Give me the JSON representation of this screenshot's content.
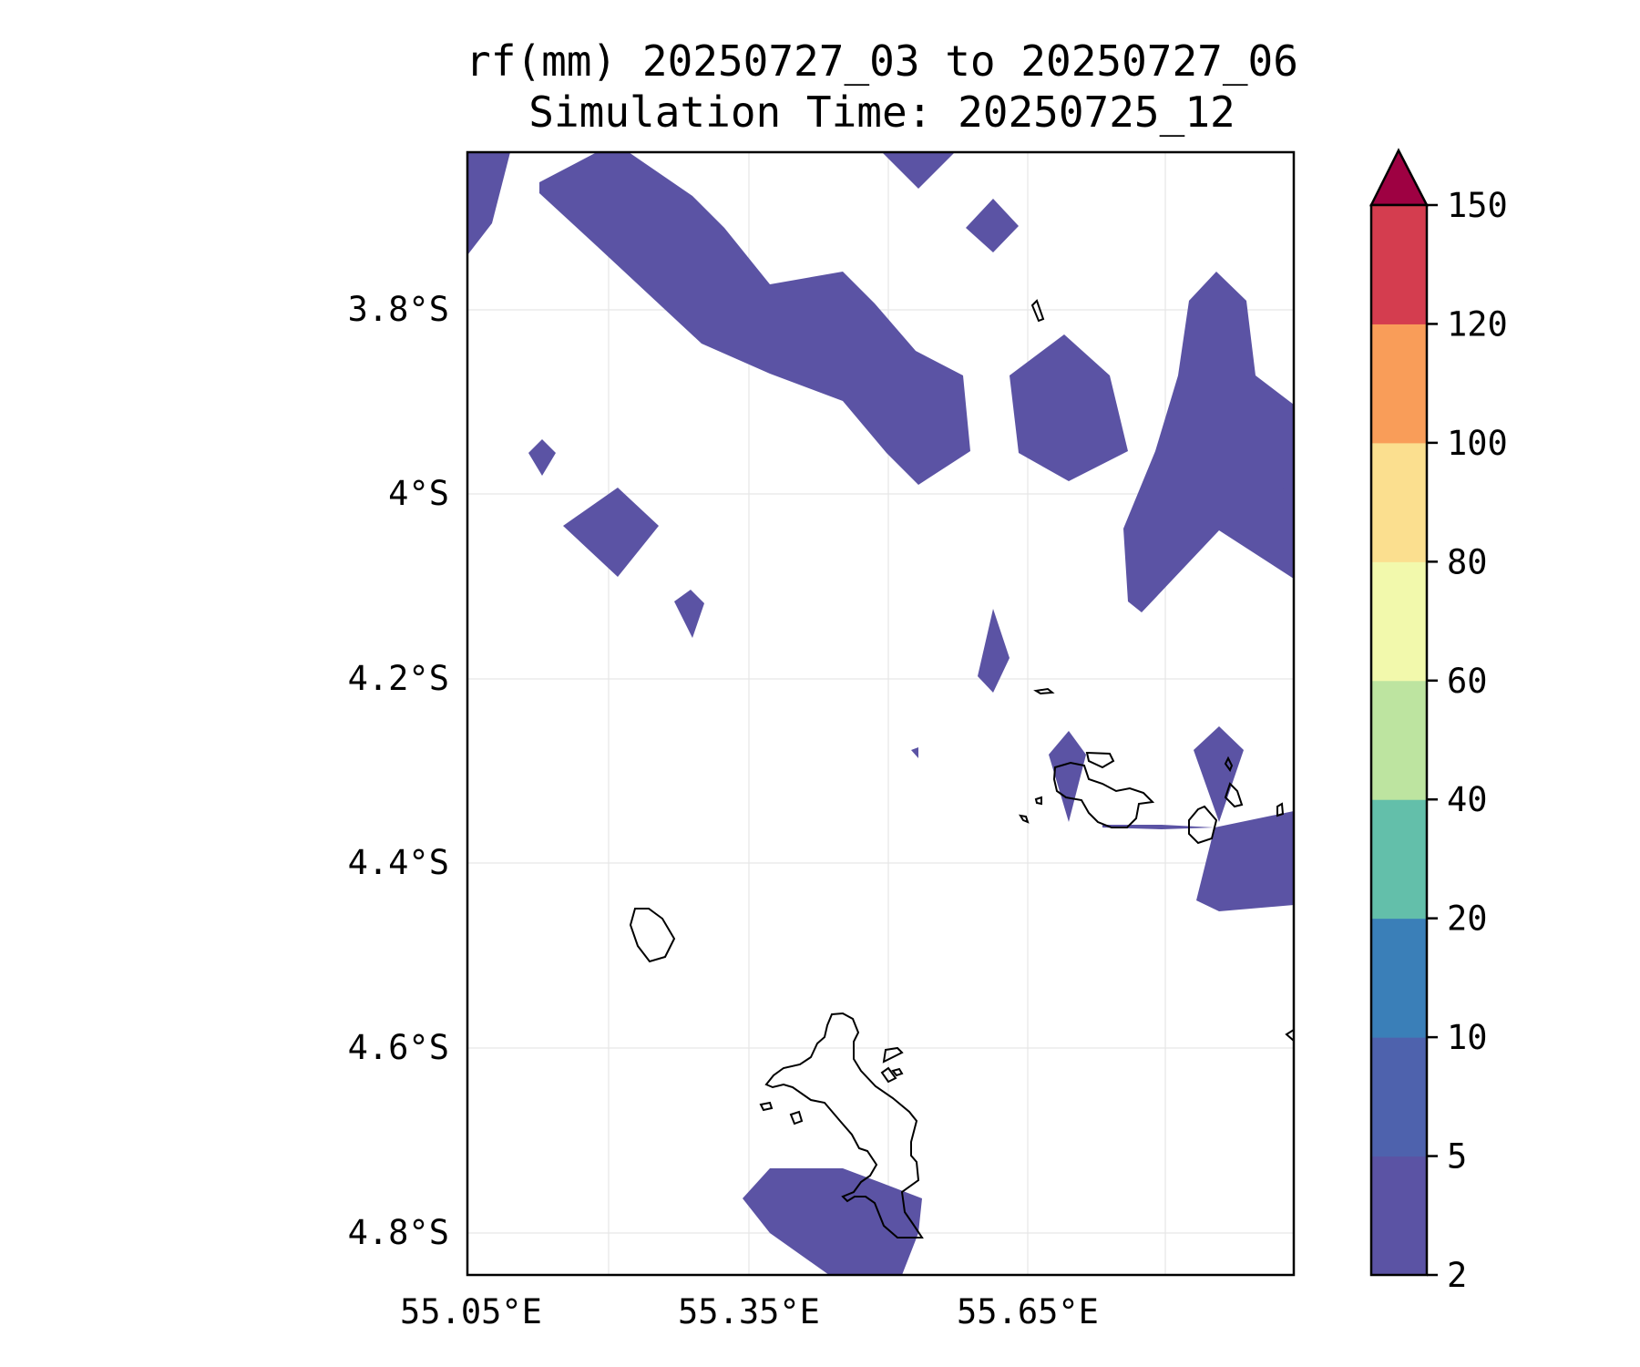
{
  "title": {
    "line1": "rf(mm) 20250727_03 to 20250727_06",
    "line2": "Simulation Time: 20250725_12"
  },
  "axes": {
    "lon_ticks": [
      "55.05°E",
      "55.35°E",
      "55.65°E"
    ],
    "lat_ticks": [
      "3.8°S",
      "4°S",
      "4.2°S",
      "4.4°S",
      "4.6°S",
      "4.8°S"
    ]
  },
  "colors": {
    "rain_fill": "#5b53a4",
    "coastline": "#000000",
    "grid": "#e6e6e6"
  },
  "colorbar": {
    "extend": "max",
    "labels": [
      "2",
      "5",
      "10",
      "20",
      "40",
      "60",
      "80",
      "100",
      "120",
      "150"
    ],
    "colors": [
      "#5b53a4",
      "#4e62ad",
      "#3a7fb8",
      "#63bfaa",
      "#bde4a0",
      "#f2f9ac",
      "#fbdf8f",
      "#f99d59",
      "#d43d4f",
      "#9e0142"
    ]
  }
}
